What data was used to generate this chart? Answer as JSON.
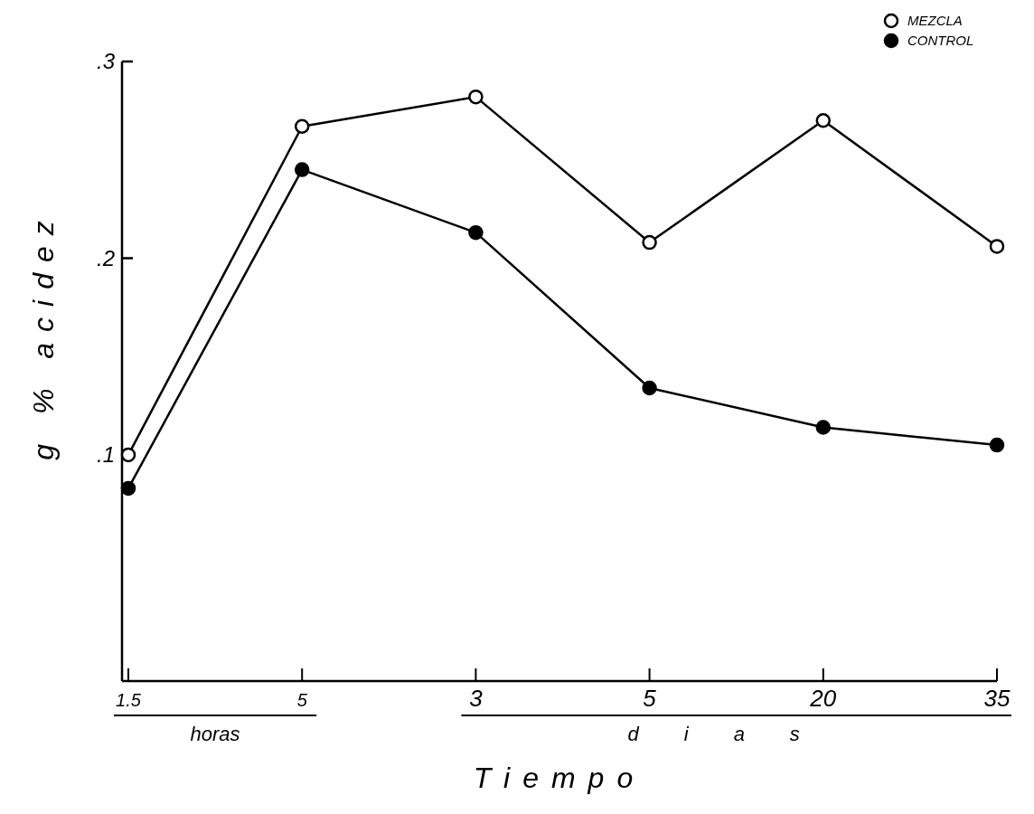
{
  "chart_data": {
    "type": "line",
    "xlabel": "Tiempo",
    "ylabel": "g % acidez",
    "categories": [
      "1.5",
      "5",
      "3",
      "5",
      "20",
      "35"
    ],
    "annotations": [
      "horas",
      "dias"
    ],
    "series": [
      {
        "name": "MEZCLA",
        "color": "#ffffff",
        "values": [
          0.1,
          0.267,
          0.282,
          0.208,
          0.27,
          0.206
        ]
      },
      {
        "name": "CONTROL",
        "color": "#000000",
        "values": [
          0.083,
          0.245,
          0.213,
          0.134,
          0.114,
          0.105
        ]
      }
    ],
    "ylim": [
      -0.015,
      0.3
    ],
    "yticks": [
      {
        "value": 0.1,
        "label": ".1"
      },
      {
        "value": 0.2,
        "label": ".2"
      },
      {
        "value": 0.3,
        "label": ".3"
      }
    ],
    "marker": "circle",
    "line_style": "solid",
    "legend": "top right",
    "grid": false
  }
}
